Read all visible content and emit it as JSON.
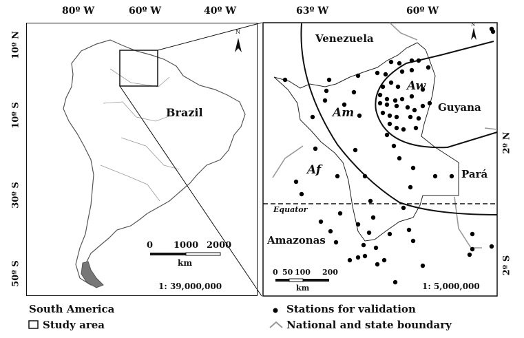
{
  "left_panel": {
    "lon_labels": [
      "80º W",
      "60º W",
      "40º W"
    ],
    "lat_labels": [
      "10º N",
      "10º S",
      "30º S",
      "50º S"
    ],
    "country_label": "Brazil",
    "scale": {
      "ticks": [
        "0",
        "1000",
        "2000"
      ],
      "unit": "km",
      "ratio": "1: 39,000,000"
    },
    "north": "N"
  },
  "right_panel": {
    "lon_labels": [
      "63º W",
      "60º W"
    ],
    "lat_labels": [
      "2º N",
      "2º S"
    ],
    "regions": {
      "venezuela": "Venezuela",
      "guyana": "Guyana",
      "para": "Pará",
      "amazonas": "Amazonas"
    },
    "climate_zones": {
      "am": "Am",
      "aw": "Aw",
      "af": "Af"
    },
    "equator": "Equator",
    "scale": {
      "ticks": [
        "0",
        "50",
        "100",
        "200"
      ],
      "unit": "km",
      "ratio": "1: 5,000,000"
    },
    "north": "N"
  },
  "legend": {
    "south_america": "South America",
    "study_area": "Study area",
    "stations": "Stations for validation",
    "boundary": "National and state boundary"
  },
  "colors": {
    "boundary": "#999999",
    "land_outline": "#555555",
    "station": "#000000"
  }
}
